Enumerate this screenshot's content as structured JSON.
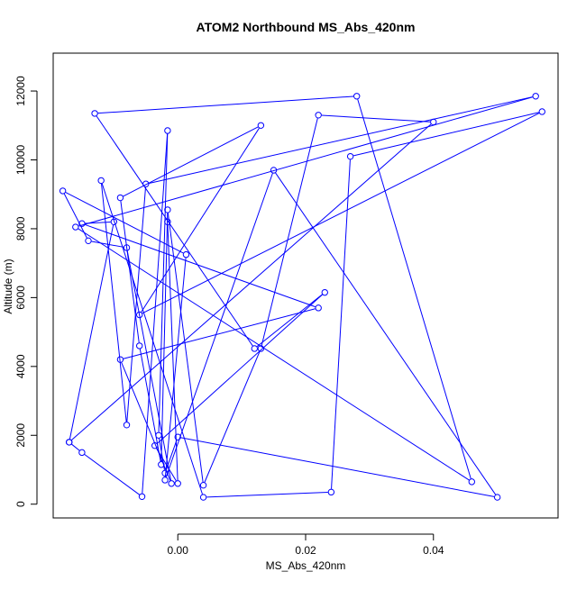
{
  "chart_data": {
    "type": "line",
    "title": "ATOM2 Northbound MS_Abs_420nm",
    "xlabel": "MS_Abs_420nm",
    "ylabel": "Altitude (m)",
    "xlim": [
      -0.0195,
      0.0595
    ],
    "ylim": [
      -400,
      13100
    ],
    "x_ticks": [
      0.0,
      0.02,
      0.04
    ],
    "x_tick_labels": [
      "0.00",
      "0.02",
      "0.04"
    ],
    "y_ticks": [
      0,
      2000,
      4000,
      6000,
      8000,
      10000,
      12000
    ],
    "y_tick_labels": [
      "0",
      "2000",
      "4000",
      "6000",
      "8000",
      "10000",
      "12000"
    ],
    "grid": false,
    "legend": "none",
    "series_color": "#0000ff",
    "markers": "open-circle",
    "x": [
      -0.0016,
      0.0,
      -0.0036,
      0.023,
      0.012,
      -0.013,
      0.028,
      0.046,
      -0.016,
      0.056,
      -0.005,
      -0.008,
      -0.012,
      0.004,
      0.024,
      0.027,
      0.057,
      -0.006,
      0.013,
      -0.009,
      -0.006,
      -0.0026,
      -0.0016,
      0.004,
      0.013,
      0.022,
      0.04,
      -0.017,
      -0.015,
      -0.0056,
      -0.0016,
      -0.003,
      -0.002,
      0.0,
      0.05,
      0.015,
      -0.002,
      0.0013,
      -0.018,
      -0.014,
      -0.008,
      -0.001,
      -0.009,
      0.022,
      -0.015,
      -0.01,
      -0.017
    ],
    "y": [
      8200,
      600,
      1700,
      6150,
      4520,
      11350,
      11850,
      650,
      8050,
      11850,
      9300,
      2300,
      9400,
      200,
      350,
      10100,
      11400,
      5500,
      11000,
      8900,
      4600,
      1150,
      8550,
      550,
      4520,
      11300,
      11100,
      1800,
      1500,
      220,
      10850,
      2000,
      900,
      1950,
      200,
      9700,
      700,
      7250,
      9100,
      7650,
      7450,
      600,
      4200,
      5700,
      8150,
      8200,
      1800
    ]
  }
}
